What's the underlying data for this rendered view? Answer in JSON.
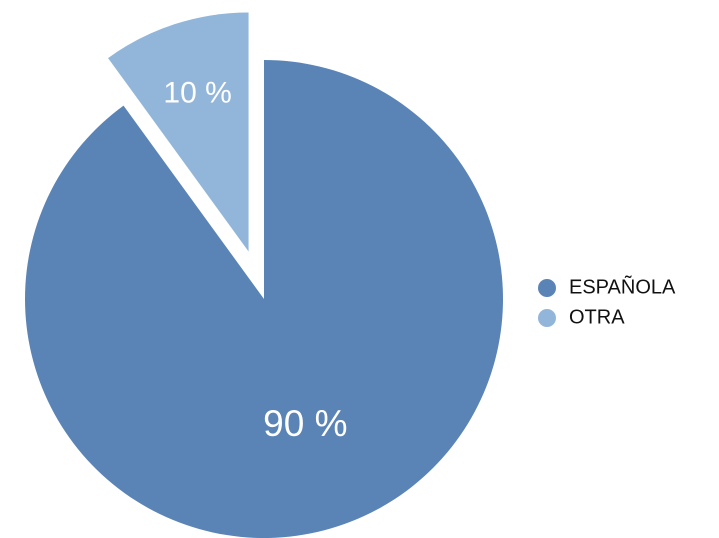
{
  "chart_data": {
    "type": "pie",
    "categories": [
      "ESPAÑOLA",
      "OTRA"
    ],
    "values": [
      90,
      10
    ],
    "labels": [
      "90 %",
      "10 %"
    ],
    "colors": [
      "#5b84b6",
      "#92b6da"
    ],
    "exploded": [
      false,
      true
    ],
    "start_angle_deg": 0,
    "direction": "clockwise",
    "legend": {
      "position": "right",
      "entries": [
        "ESPAÑOLA",
        "OTRA"
      ]
    }
  }
}
